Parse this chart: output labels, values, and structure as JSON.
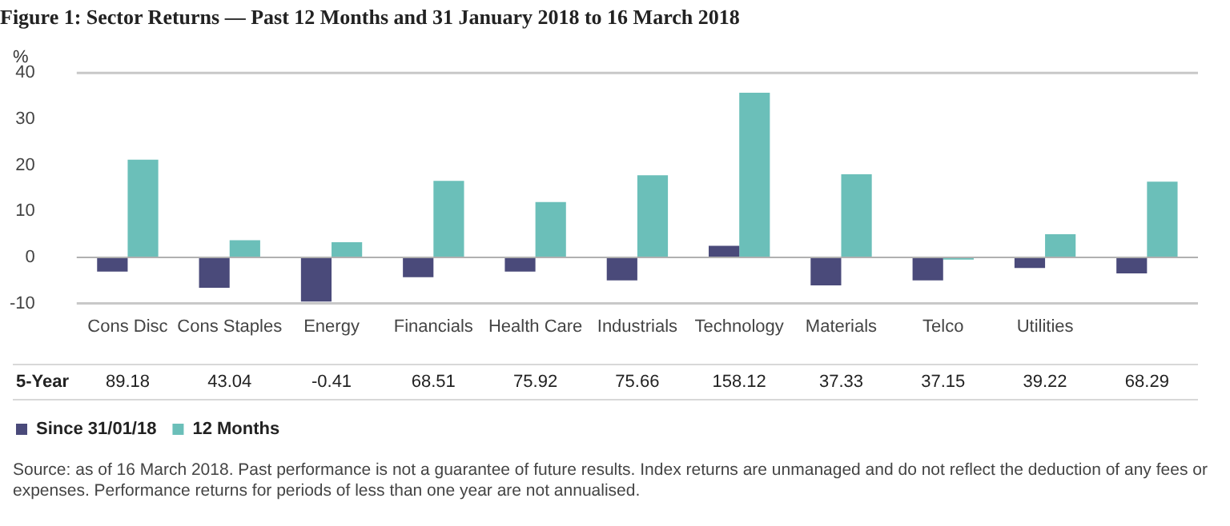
{
  "chart_data": {
    "type": "bar",
    "title": "Figure 1: Sector Returns — Past 12 Months and 31 January 2018 to 16 March 2018",
    "ylabel": "%",
    "categories": [
      "Cons Disc",
      "Cons Staples",
      "Energy",
      "Financials",
      "Health Care",
      "Industrials",
      "Technology",
      "Materials",
      "Telco",
      "Utilities",
      null
    ],
    "series": [
      {
        "name": "Since 31/01/18",
        "color": "#4a4a7a",
        "values": [
          -3.1,
          -6.6,
          -9.6,
          -4.3,
          -3.1,
          -5.0,
          2.5,
          -6.1,
          -5.0,
          -2.3,
          -3.5
        ]
      },
      {
        "name": "12 Months",
        "color": "#6bbfb9",
        "values": [
          21.2,
          3.7,
          3.3,
          16.6,
          12.0,
          17.8,
          35.7,
          18.0,
          -0.5,
          5.0,
          16.4
        ]
      }
    ],
    "ylim": [
      -10,
      40
    ],
    "yticks": [
      -10,
      0,
      10,
      20,
      30,
      40
    ],
    "ref_lines": [
      {
        "axis": "y",
        "value": 0,
        "color": "#b0b0b0"
      }
    ],
    "legend": "bottom left",
    "annotations": [
      "5-Year",
      "89.18",
      "43.04",
      "-0.41",
      "68.51",
      "75.92",
      "75.66",
      "158.12",
      "37.33",
      "37.15",
      "39.22",
      "68.29",
      "Source: as of 16 March 2018. Past performance is not a guarantee of future results. Index returns are unmanaged and do not reflect the deduction of any fees or expenses. Performance returns for periods of less than one year are not annualised."
    ]
  }
}
